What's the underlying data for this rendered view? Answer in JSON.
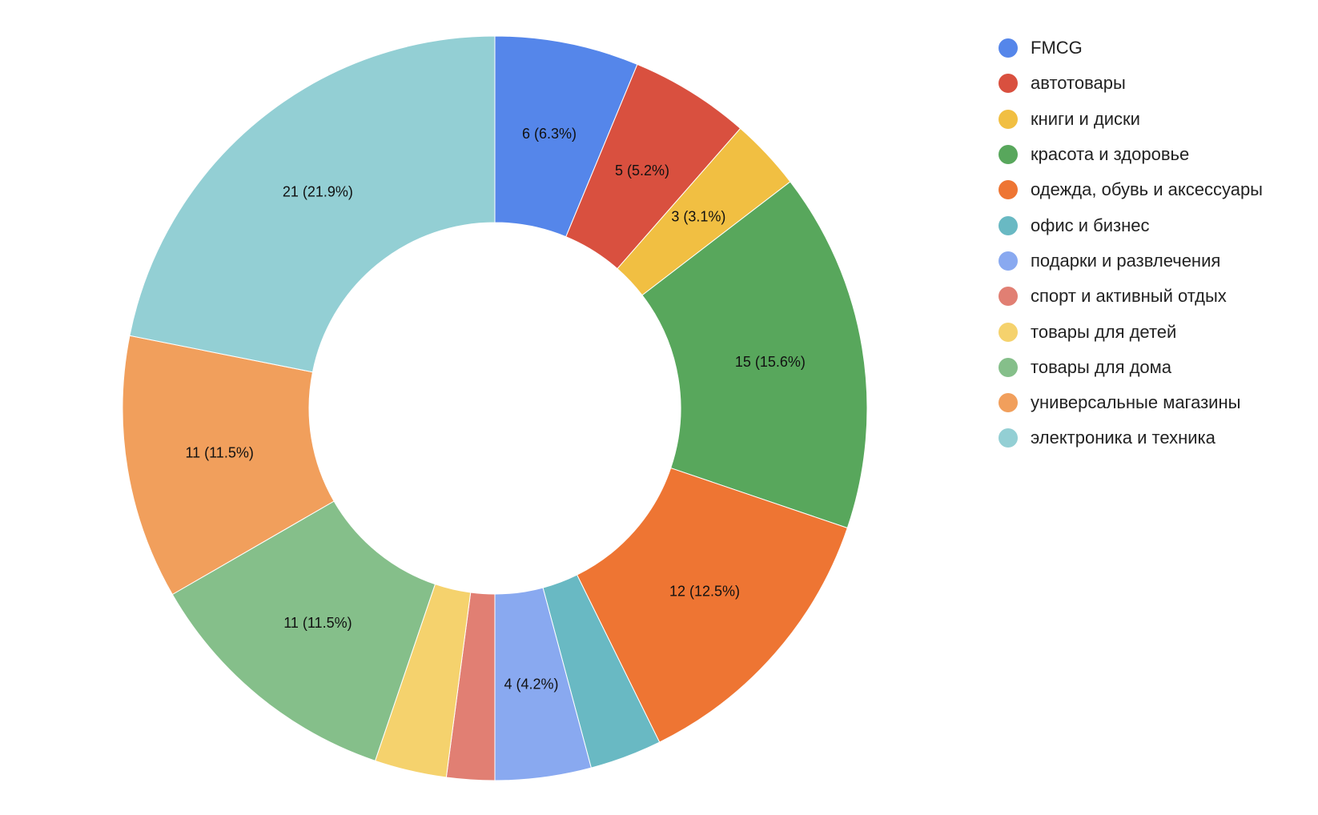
{
  "chart_data": {
    "type": "pie",
    "donut": true,
    "title": "",
    "legend_position": "right",
    "categories": [
      "FMCG",
      "автотовары",
      "книги и диски",
      "красота и здоровье",
      "одежда, обувь и аксессуары",
      "офис и бизнес",
      "подарки и развлечения",
      "спорт и активный отдых",
      "товары для детей",
      "товары для дома",
      "универсальные магазины",
      "электроника и техника"
    ],
    "values": [
      6,
      5,
      3,
      15,
      12,
      3,
      4,
      2,
      3,
      11,
      11,
      21
    ],
    "data_labels": [
      "6 (6.3%)",
      "5 (5.2%)",
      "3 (3.1%)",
      "15 (15.6%)",
      "12 (12.5%)",
      "",
      "4 (4.2%)",
      "",
      "",
      "11 (11.5%)",
      "11 (11.5%)",
      "21 (21.9%)"
    ],
    "colors": [
      "#5586EA",
      "#D9503F",
      "#F1BF42",
      "#58A75C",
      "#EE7533",
      "#69B9C3",
      "#89A9F0",
      "#E17F73",
      "#F5D26D",
      "#85BF8A",
      "#F19F5C",
      "#93CFD4"
    ]
  }
}
